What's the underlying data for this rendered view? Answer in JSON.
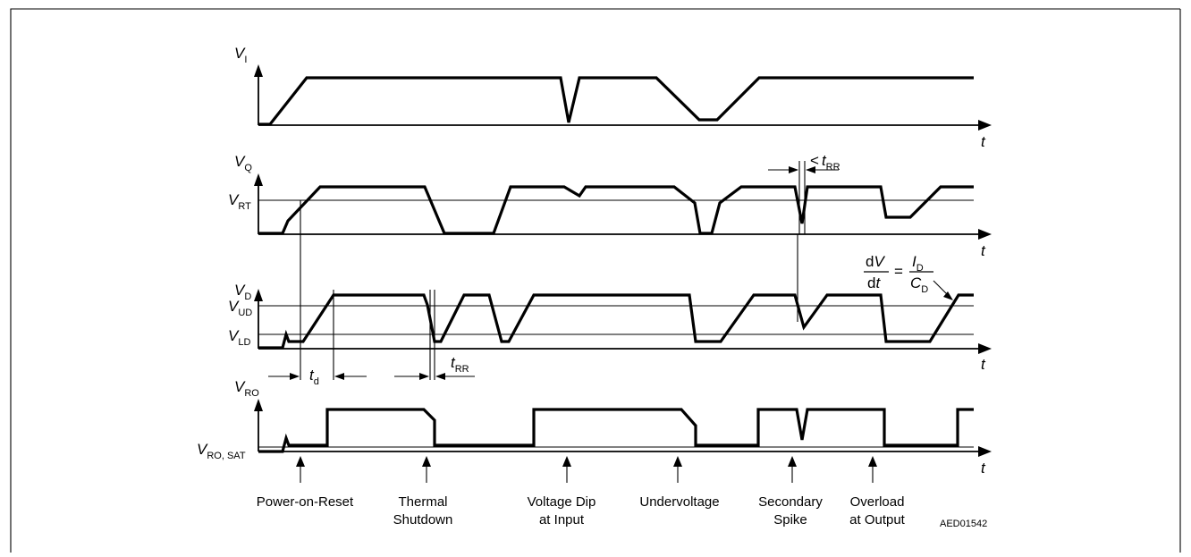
{
  "signals": {
    "vi": {
      "main": "V",
      "sub": "I"
    },
    "vq": {
      "main": "V",
      "sub": "Q"
    },
    "vrt": {
      "main": "V",
      "sub": "RT"
    },
    "vd": {
      "main": "V",
      "sub": "D"
    },
    "vud": {
      "main": "V",
      "sub": "UD"
    },
    "vld": {
      "main": "V",
      "sub": "LD"
    },
    "vro": {
      "main": "V",
      "sub": "RO"
    },
    "vrosat": {
      "main": "V",
      "sub": "RO, SAT"
    }
  },
  "time_axis_label": "t",
  "timing": {
    "td": {
      "main": "t",
      "sub": "d"
    },
    "trr": {
      "main": "t",
      "sub": "RR"
    },
    "trr_lt_prefix": "<",
    "trr_lt": {
      "main": "t",
      "sub": "RR"
    }
  },
  "formula": {
    "lhs_num_d": "d",
    "lhs_num_v": "V",
    "lhs_den_d": "d",
    "lhs_den_t": "t",
    "equals": "=",
    "rhs_num": {
      "main": "I",
      "sub": "D"
    },
    "rhs_den": {
      "main": "C",
      "sub": "D"
    }
  },
  "events": [
    {
      "line1": "Power-on-Reset",
      "line2": ""
    },
    {
      "line1": "Thermal",
      "line2": "Shutdown"
    },
    {
      "line1": "Voltage Dip",
      "line2": "at Input"
    },
    {
      "line1": "Undervoltage",
      "line2": ""
    },
    {
      "line1": "Secondary",
      "line2": "Spike"
    },
    {
      "line1": "Overload",
      "line2": "at Output"
    }
  ],
  "figure_id": "AED01542"
}
